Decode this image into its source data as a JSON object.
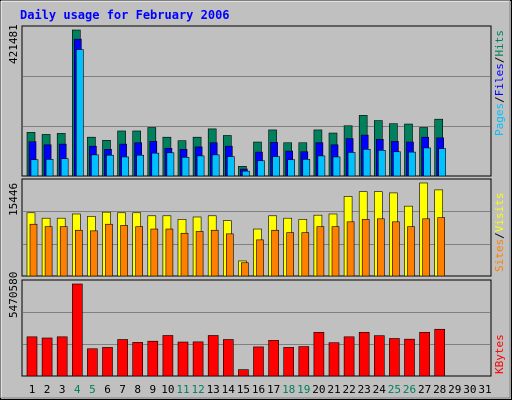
{
  "chart_data": {
    "title": "Daily usage for February 2006",
    "days": [
      "1",
      "2",
      "3",
      "4",
      "5",
      "6",
      "7",
      "8",
      "9",
      "10",
      "11",
      "12",
      "13",
      "14",
      "15",
      "16",
      "17",
      "18",
      "19",
      "20",
      "21",
      "22",
      "23",
      "24",
      "25",
      "26",
      "27",
      "28",
      "29",
      "30",
      "31"
    ],
    "weekend_days": [
      "4",
      "5",
      "11",
      "12",
      "18",
      "19",
      "25",
      "26"
    ],
    "colors": {
      "background": "#c0c0c0",
      "title": "#0000ff",
      "hits": "#00805c",
      "files": "#0000ff",
      "pages": "#00c0ff",
      "visits": "#ffff00",
      "sites": "#ff8000",
      "kbytes": "#ff0000",
      "weekend_label": "#00805c"
    },
    "panels": [
      {
        "type": "bar",
        "max_label": "421481",
        "ymax": 421481,
        "legend": [
          {
            "key": "hits",
            "text": "Hits"
          },
          {
            "key": "files",
            "text": "Files"
          },
          {
            "key": "pages",
            "text": "Pages"
          }
        ],
        "series": [
          {
            "name": "Hits",
            "key": "hits",
            "values": [
              126000,
              120000,
              123000,
              421481,
              112000,
              103000,
              130000,
              130000,
              140000,
              112000,
              102000,
              112000,
              136000,
              117000,
              28000,
              98000,
              133000,
              96000,
              96000,
              133000,
              124000,
              145000,
              175000,
              160000,
              151000,
              150000,
              140000,
              164000,
              0,
              0,
              0
            ]
          },
          {
            "name": "Files",
            "key": "files",
            "values": [
              99000,
              90000,
              92000,
              395000,
              86000,
              77000,
              92000,
              96000,
              100000,
              80000,
              77000,
              84000,
              96000,
              86000,
              20000,
              69000,
              97000,
              72000,
              70000,
              96000,
              90000,
              108000,
              118000,
              106000,
              100000,
              98000,
              112000,
              110000,
              0,
              0,
              0
            ]
          },
          {
            "name": "Pages",
            "key": "pages",
            "values": [
              47000,
              48000,
              50000,
              365000,
              61000,
              60000,
              55000,
              60000,
              66000,
              67000,
              54000,
              58000,
              61000,
              56000,
              14000,
              44000,
              56000,
              47000,
              48000,
              58000,
              55000,
              68000,
              77000,
              74000,
              70000,
              69000,
              81000,
              79000,
              0,
              0,
              0
            ]
          }
        ]
      },
      {
        "type": "bar",
        "max_label": "15446",
        "ymax": 15446,
        "legend": [
          {
            "key": "visits",
            "text": "Visits"
          },
          {
            "key": "sites",
            "text": "Sites"
          }
        ],
        "series": [
          {
            "name": "Visits",
            "key": "visits",
            "values": [
              10500,
              9600,
              9600,
              10300,
              9900,
              10600,
              10500,
              10500,
              10000,
              10000,
              9400,
              9800,
              10000,
              9200,
              2500,
              7800,
              10000,
              9600,
              9400,
              10100,
              10300,
              13200,
              14000,
              14000,
              13800,
              11600,
              15446,
              14300,
              0,
              0,
              0
            ]
          },
          {
            "name": "Sites",
            "key": "sites",
            "values": [
              8600,
              8200,
              8200,
              7600,
              7500,
              8600,
              8400,
              8200,
              7800,
              7800,
              7100,
              7400,
              7600,
              7000,
              2200,
              6000,
              7600,
              7200,
              7200,
              8200,
              8200,
              9000,
              9400,
              9500,
              9000,
              8200,
              9500,
              9700,
              0,
              0,
              0
            ]
          }
        ]
      },
      {
        "type": "bar",
        "max_label": "5470580",
        "ymax": 5470580,
        "legend": [
          {
            "key": "kbytes",
            "text": "KBytes"
          }
        ],
        "series": [
          {
            "name": "KBytes",
            "key": "kbytes",
            "values": [
              2330000,
              2260000,
              2330000,
              5470580,
              1620000,
              1700000,
              2170000,
              2000000,
              2070000,
              2410000,
              2020000,
              2030000,
              2410000,
              2170000,
              380000,
              1730000,
              2120000,
              1700000,
              1750000,
              2600000,
              1980000,
              2330000,
              2600000,
              2400000,
              2230000,
              2190000,
              2600000,
              2780000,
              0,
              0,
              0
            ]
          }
        ]
      }
    ]
  }
}
